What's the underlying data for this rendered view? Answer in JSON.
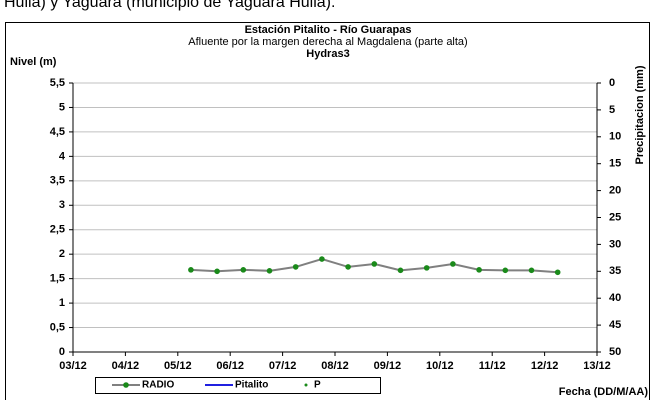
{
  "header_text": "Huila) y Yaguara (municipio de Yaguara Huila).",
  "chart_data": {
    "type": "line",
    "title": "Estación Pitalito  - Río Guarapas",
    "subtitle": "Afluente por la margen derecha al Magdalena (parte alta)",
    "subtitle2": "Hydras3",
    "y_label": "Nivel (m)",
    "y2_label": "Precipitacion (mm)",
    "x_label": "Fecha (DD/M/AA)",
    "x": [
      5.25,
      5.75,
      6.25,
      6.75,
      7.25,
      7.75,
      8.25,
      8.75,
      9.25,
      9.75,
      10.25,
      10.75,
      11.25,
      11.75,
      12.25
    ],
    "series": [
      {
        "name": "RADIO",
        "color": "#808080",
        "marker_color": "#1a8a1a",
        "values": [
          1.68,
          1.65,
          1.68,
          1.66,
          1.74,
          1.9,
          1.74,
          1.8,
          1.67,
          1.72,
          1.8,
          1.68,
          1.67,
          1.67,
          1.63
        ]
      },
      {
        "name": "Pitalito",
        "color": "#2020e0",
        "values": [
          null,
          null,
          null,
          null,
          null,
          null,
          null,
          null,
          null,
          null,
          null,
          null,
          null,
          null,
          null
        ]
      },
      {
        "name": "P",
        "color": "#1a8a1a",
        "axis": "y2",
        "values": [
          null,
          null,
          null,
          null,
          null,
          null,
          null,
          null,
          null,
          null,
          null,
          null,
          null,
          null,
          null
        ]
      }
    ],
    "xlim": [
      3,
      13
    ],
    "xticks": [
      {
        "value": 3,
        "label": "03/12"
      },
      {
        "value": 4,
        "label": "04/12"
      },
      {
        "value": 5,
        "label": "05/12"
      },
      {
        "value": 6,
        "label": "06/12"
      },
      {
        "value": 7,
        "label": "07/12"
      },
      {
        "value": 8,
        "label": "08/12"
      },
      {
        "value": 9,
        "label": "09/12"
      },
      {
        "value": 10,
        "label": "10/12"
      },
      {
        "value": 11,
        "label": "11/12"
      },
      {
        "value": 12,
        "label": "12/12"
      },
      {
        "value": 13,
        "label": "13/12"
      }
    ],
    "ylim": [
      0,
      5.5
    ],
    "yticks": [
      0,
      {
        "value": 0.5,
        "label": "0,5"
      },
      1,
      {
        "value": 1.5,
        "label": "1,5"
      },
      2,
      {
        "value": 2.5,
        "label": "2,5"
      },
      3,
      {
        "value": 3.5,
        "label": "3,5"
      },
      4,
      {
        "value": 4.5,
        "label": "4,5"
      },
      5,
      {
        "value": 5.5,
        "label": "5,5"
      }
    ],
    "y2lim": [
      0,
      50
    ],
    "y2_inverted": true,
    "y2ticks": [
      0,
      5,
      10,
      15,
      20,
      25,
      30,
      35,
      40,
      45,
      50
    ],
    "grid": true
  }
}
